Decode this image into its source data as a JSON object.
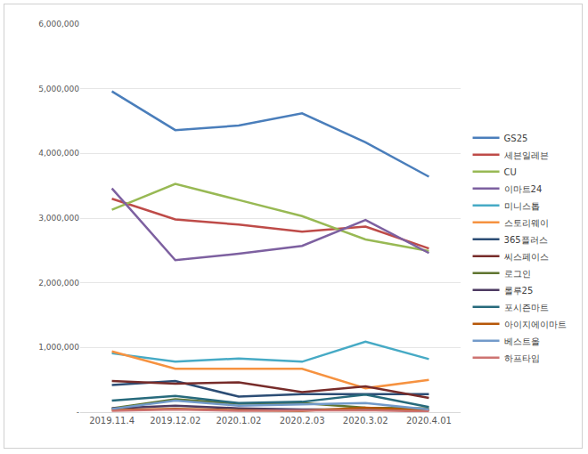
{
  "chart_data": {
    "type": "line",
    "categories": [
      "2019.11.4",
      "2019.12.02",
      "2020.1.02",
      "2020.2.03",
      "2020.3.02",
      "2020.4.01"
    ],
    "series": [
      {
        "name": "GS25",
        "color": "#4a7ebb",
        "values": [
          4960000,
          4360000,
          4430000,
          4620000,
          4170000,
          3640000
        ]
      },
      {
        "name": "세븐일레븐",
        "color": "#be4b48",
        "values": [
          3300000,
          2980000,
          2900000,
          2790000,
          2870000,
          2530000
        ]
      },
      {
        "name": "CU",
        "color": "#98b954",
        "values": [
          3130000,
          3530000,
          3280000,
          3030000,
          2670000,
          2490000
        ]
      },
      {
        "name": "이마트24",
        "color": "#7d60a0",
        "values": [
          3460000,
          2350000,
          2450000,
          2570000,
          2970000,
          2460000
        ]
      },
      {
        "name": "미니스톱",
        "color": "#46aac5",
        "values": [
          910000,
          780000,
          830000,
          780000,
          1090000,
          820000
        ]
      },
      {
        "name": "스토리웨이",
        "color": "#f69240",
        "values": [
          940000,
          670000,
          670000,
          670000,
          370000,
          500000
        ]
      },
      {
        "name": "365플러스",
        "color": "#2c4d75",
        "values": [
          420000,
          480000,
          240000,
          280000,
          280000,
          280000
        ]
      },
      {
        "name": "씨스페이스",
        "color": "#772c2a",
        "values": [
          480000,
          440000,
          460000,
          310000,
          400000,
          220000
        ]
      },
      {
        "name": "로그인",
        "color": "#5f7530",
        "values": [
          60000,
          200000,
          130000,
          140000,
          70000,
          60000
        ]
      },
      {
        "name": "롤루25",
        "color": "#4d3b62",
        "values": [
          60000,
          100000,
          60000,
          40000,
          40000,
          30000
        ]
      },
      {
        "name": "포시즌마트",
        "color": "#276a7c",
        "values": [
          180000,
          250000,
          140000,
          160000,
          270000,
          80000
        ]
      },
      {
        "name": "아이지에이마트",
        "color": "#b65708",
        "values": [
          30000,
          50000,
          30000,
          20000,
          70000,
          30000
        ]
      },
      {
        "name": "베스트올",
        "color": "#729aca",
        "values": [
          50000,
          180000,
          100000,
          120000,
          140000,
          40000
        ]
      },
      {
        "name": "하프타임",
        "color": "#cd7371",
        "values": [
          20000,
          40000,
          20000,
          20000,
          30000,
          10000
        ]
      }
    ],
    "ylim": [
      0,
      6000000
    ],
    "yticks": [
      {
        "value": 0,
        "label": "-"
      },
      {
        "value": 1000000,
        "label": "1,000,000"
      },
      {
        "value": 2000000,
        "label": "2,000,000"
      },
      {
        "value": 3000000,
        "label": "3,000,000"
      },
      {
        "value": 4000000,
        "label": "4,000,000"
      },
      {
        "value": 5000000,
        "label": "5,000,000"
      },
      {
        "value": 6000000,
        "label": "6,000,000"
      }
    ],
    "grid": true,
    "legend": "right"
  }
}
